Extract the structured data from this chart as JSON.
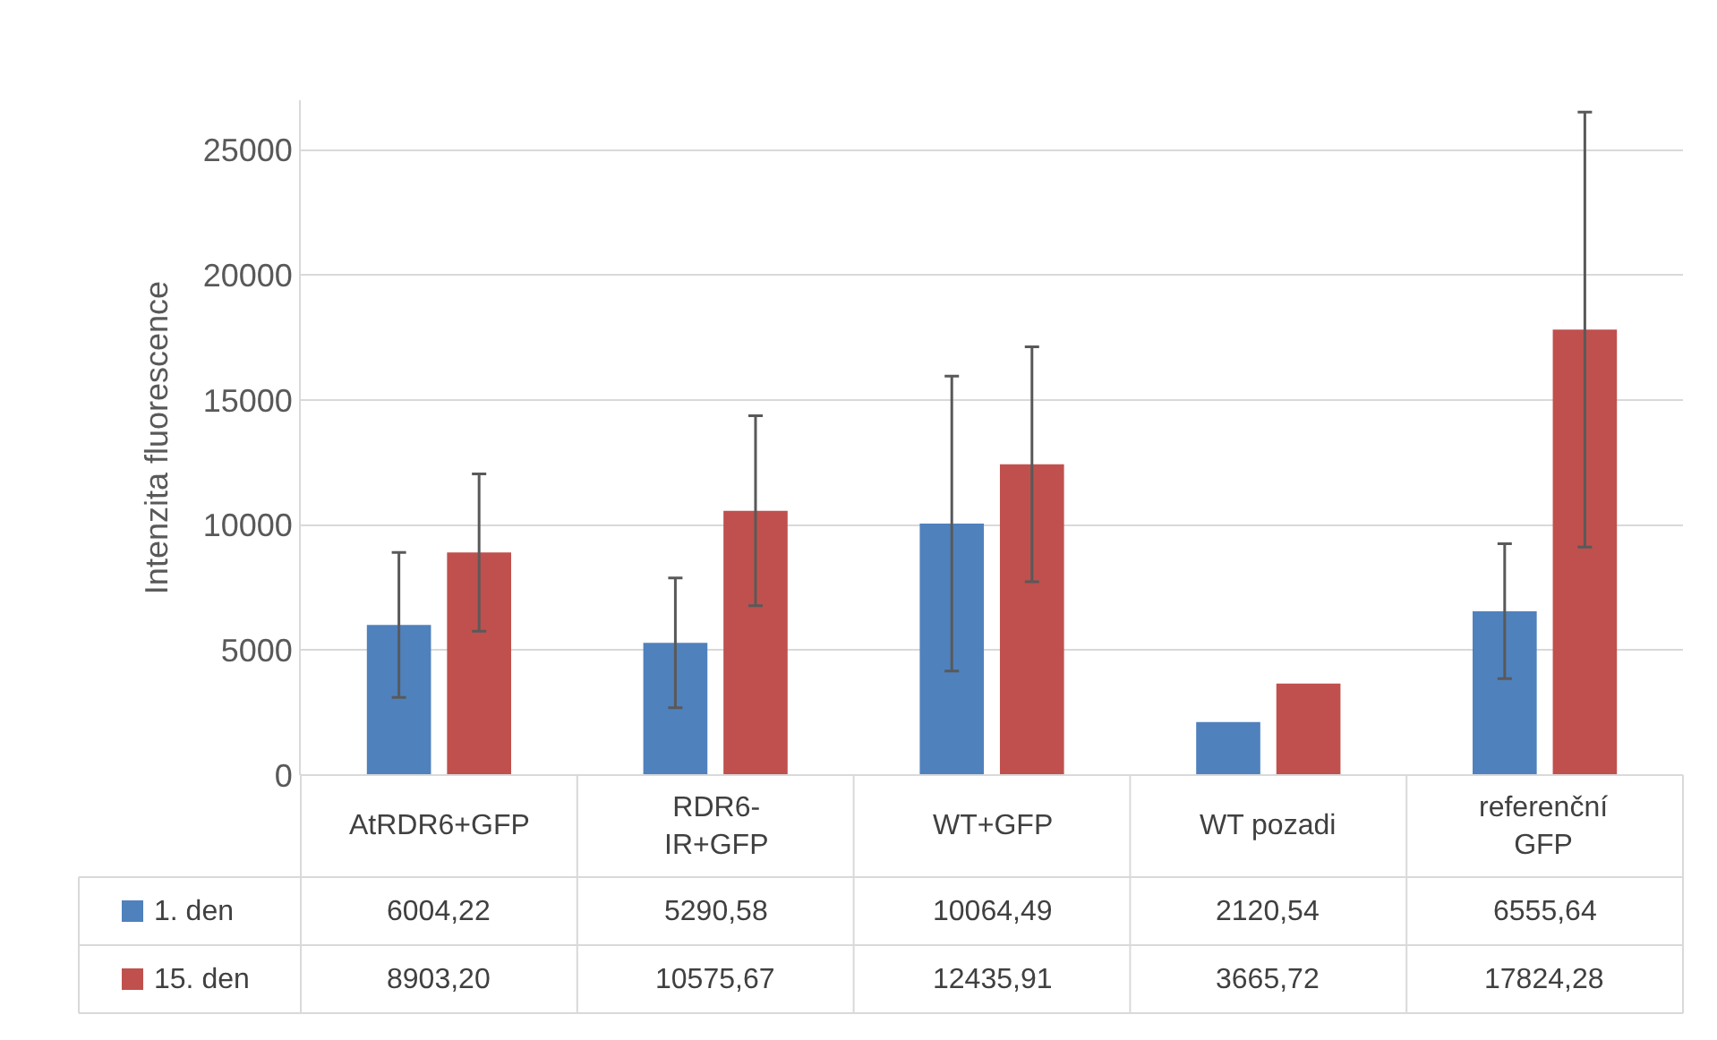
{
  "chart_data": {
    "type": "bar",
    "ylabel": "Intenzita fluorescence",
    "categories": [
      "AtRDR6+GFP",
      "RDR6-IR+GFP",
      "WT+GFP",
      "WT pozadi",
      "referenční GFP"
    ],
    "series": [
      {
        "name": "1. den",
        "color": "#4f81bd",
        "values": [
          6004.22,
          5290.58,
          10064.49,
          2120.54,
          6555.64
        ],
        "errors": [
          2900,
          2600,
          5900,
          null,
          2700
        ],
        "value_labels": [
          "6004,22",
          "5290,58",
          "10064,49",
          "2120,54",
          "6555,64"
        ]
      },
      {
        "name": "15. den",
        "color": "#c0504d",
        "values": [
          8903.2,
          10575.67,
          12435.91,
          3665.72,
          17824.28
        ],
        "errors": [
          3150,
          3800,
          4700,
          null,
          8700
        ],
        "value_labels": [
          "8903,20",
          "10575,67",
          "12435,91",
          "3665,72",
          "17824,28"
        ]
      }
    ],
    "ylim": [
      0,
      27000
    ],
    "yticks": [
      0,
      5000,
      10000,
      15000,
      20000,
      25000
    ],
    "grid": "y",
    "legend": "bottom"
  }
}
